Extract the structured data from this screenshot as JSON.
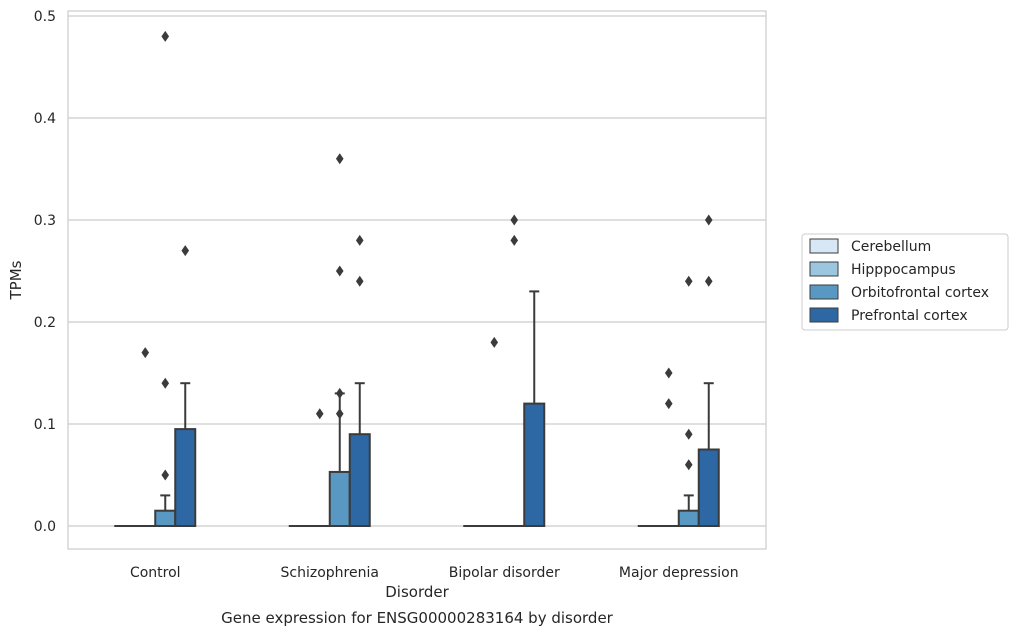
{
  "chart_data": {
    "type": "box",
    "title": "Gene expression for ENSG00000283164 by disorder",
    "xlabel": "Disorder",
    "ylabel": "TPMs",
    "ylim": [
      -0.023,
      0.505
    ],
    "yticks": [
      0.0,
      0.1,
      0.2,
      0.3,
      0.4,
      0.5
    ],
    "ytick_labels": [
      "0.0",
      "0.1",
      "0.2",
      "0.3",
      "0.4",
      "0.5"
    ],
    "grid": "horizontal",
    "legend_position": "right",
    "categories": [
      "Control",
      "Schizophrenia",
      "Bipolar disorder",
      "Major depression"
    ],
    "series": [
      {
        "name": "Cerebellum",
        "color": "#d8e7f5",
        "boxes": [
          {
            "q1": 0,
            "median": 0,
            "q3": 0,
            "whisker_low": 0,
            "whisker_high": 0,
            "outliers": []
          },
          {
            "q1": 0,
            "median": 0,
            "q3": 0,
            "whisker_low": 0,
            "whisker_high": 0,
            "outliers": []
          },
          {
            "q1": 0,
            "median": 0,
            "q3": 0,
            "whisker_low": 0,
            "whisker_high": 0,
            "outliers": []
          },
          {
            "q1": 0,
            "median": 0,
            "q3": 0,
            "whisker_low": 0,
            "whisker_high": 0,
            "outliers": []
          }
        ]
      },
      {
        "name": "Hipppocampus",
        "color": "#9cc6df",
        "boxes": [
          {
            "q1": 0,
            "median": 0,
            "q3": 0,
            "whisker_low": 0,
            "whisker_high": 0,
            "outliers": [
              0.17
            ]
          },
          {
            "q1": 0,
            "median": 0,
            "q3": 0,
            "whisker_low": 0,
            "whisker_high": 0,
            "outliers": [
              0.11
            ]
          },
          {
            "q1": 0,
            "median": 0,
            "q3": 0,
            "whisker_low": 0,
            "whisker_high": 0,
            "outliers": [
              0.18
            ]
          },
          {
            "q1": 0,
            "median": 0,
            "q3": 0,
            "whisker_low": 0,
            "whisker_high": 0,
            "outliers": [
              0.15,
              0.12
            ]
          }
        ]
      },
      {
        "name": "Orbitofrontal cortex",
        "color": "#5a98c4",
        "boxes": [
          {
            "q1": 0,
            "median": 0,
            "q3": 0.015,
            "whisker_low": 0,
            "whisker_high": 0.03,
            "outliers": [
              0.48,
              0.14,
              0.05
            ]
          },
          {
            "q1": 0,
            "median": 0,
            "q3": 0.053,
            "whisker_low": 0,
            "whisker_high": 0.13,
            "outliers": [
              0.36,
              0.25,
              0.13,
              0.11
            ]
          },
          {
            "q1": 0,
            "median": 0,
            "q3": 0,
            "whisker_low": 0,
            "whisker_high": 0,
            "outliers": [
              0.3,
              0.28
            ]
          },
          {
            "q1": 0,
            "median": 0,
            "q3": 0.015,
            "whisker_low": 0,
            "whisker_high": 0.03,
            "outliers": [
              0.24,
              0.09,
              0.06
            ]
          }
        ]
      },
      {
        "name": "Prefrontal cortex",
        "color": "#2d67a4",
        "boxes": [
          {
            "q1": 0,
            "median": 0,
            "q3": 0.095,
            "whisker_low": 0,
            "whisker_high": 0.14,
            "outliers": [
              0.27
            ]
          },
          {
            "q1": 0,
            "median": 0,
            "q3": 0.09,
            "whisker_low": 0,
            "whisker_high": 0.14,
            "outliers": [
              0.28,
              0.24
            ]
          },
          {
            "q1": 0,
            "median": 0,
            "q3": 0.12,
            "whisker_low": 0,
            "whisker_high": 0.23,
            "outliers": []
          },
          {
            "q1": 0,
            "median": 0,
            "q3": 0.075,
            "whisker_low": 0,
            "whisker_high": 0.14,
            "outliers": [
              0.3,
              0.24
            ]
          }
        ]
      }
    ]
  }
}
